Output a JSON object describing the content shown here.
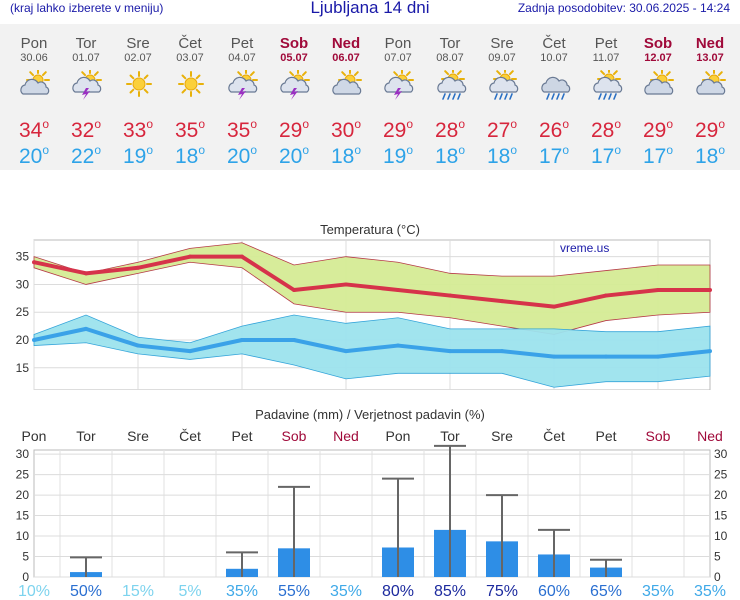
{
  "header": {
    "left_note": "(kraj lahko izberete v meniju)",
    "title": "Ljubljana 14 dni",
    "updated": "Zadnja posodobitev: 30.06.2025 - 14:24"
  },
  "days": [
    {
      "name": "Pon",
      "date": "30.06",
      "weekend": false,
      "icon": "partly-cloudy-sun-icon",
      "tmax": "34",
      "tmin": "20"
    },
    {
      "name": "Tor",
      "date": "01.07",
      "weekend": false,
      "icon": "sun-thunderstorm-icon",
      "tmax": "32",
      "tmin": "22"
    },
    {
      "name": "Sre",
      "date": "02.07",
      "weekend": false,
      "icon": "sunny-icon",
      "tmax": "33",
      "tmin": "19"
    },
    {
      "name": "Čet",
      "date": "03.07",
      "weekend": false,
      "icon": "sunny-icon",
      "tmax": "35",
      "tmin": "18"
    },
    {
      "name": "Pet",
      "date": "04.07",
      "weekend": false,
      "icon": "sun-thunderstorm-icon",
      "tmax": "35",
      "tmin": "20"
    },
    {
      "name": "Sob",
      "date": "05.07",
      "weekend": true,
      "icon": "sun-thunderstorm-icon",
      "tmax": "29",
      "tmin": "20"
    },
    {
      "name": "Ned",
      "date": "06.07",
      "weekend": true,
      "icon": "partly-cloudy-sun-icon",
      "tmax": "30",
      "tmin": "18"
    },
    {
      "name": "Pon",
      "date": "07.07",
      "weekend": false,
      "icon": "sun-thunderstorm-icon",
      "tmax": "29",
      "tmin": "19"
    },
    {
      "name": "Tor",
      "date": "08.07",
      "weekend": false,
      "icon": "sun-rain-icon",
      "tmax": "28",
      "tmin": "18"
    },
    {
      "name": "Sre",
      "date": "09.07",
      "weekend": false,
      "icon": "sun-rain-icon",
      "tmax": "27",
      "tmin": "18"
    },
    {
      "name": "Čet",
      "date": "10.07",
      "weekend": false,
      "icon": "cloud-rain-icon",
      "tmax": "26",
      "tmin": "17"
    },
    {
      "name": "Pet",
      "date": "11.07",
      "weekend": false,
      "icon": "sun-rain-icon",
      "tmax": "28",
      "tmin": "17"
    },
    {
      "name": "Sob",
      "date": "12.07",
      "weekend": true,
      "icon": "partly-cloudy-sun-icon",
      "tmax": "29",
      "tmin": "17"
    },
    {
      "name": "Ned",
      "date": "13.07",
      "weekend": true,
      "icon": "partly-cloudy-sun-icon",
      "tmax": "29",
      "tmin": "18"
    }
  ],
  "colors": {
    "max": "#d7263d",
    "min": "#2ea3e8",
    "weekend": "#a00a3a",
    "bar": "#2e8ee6",
    "maxband": "#d5ec95",
    "minband": "#9de3ee"
  },
  "chart_data": [
    {
      "type": "line",
      "title": "Temperatura (°C)",
      "watermark": "vreme.us",
      "ylim": [
        11,
        38
      ],
      "yticks": [
        15,
        20,
        25,
        30,
        35
      ],
      "x": [
        1,
        2,
        3,
        4,
        5,
        6,
        7,
        8,
        9,
        10,
        11,
        12,
        13,
        14
      ],
      "series": [
        {
          "name": "max",
          "values": [
            34,
            32,
            33,
            35,
            35,
            29,
            30,
            29,
            28,
            27,
            26,
            28,
            29,
            29
          ]
        },
        {
          "name": "min",
          "values": [
            20,
            22,
            19,
            18,
            20,
            20,
            18,
            19,
            18,
            18,
            17,
            17,
            17,
            18
          ]
        }
      ],
      "bands": [
        {
          "name": "max-range",
          "upper": [
            35,
            32,
            34,
            36.5,
            37.5,
            33.5,
            35,
            34,
            32,
            31.5,
            31.5,
            32.5,
            33.5,
            33.5
          ],
          "lower": [
            33,
            30,
            32,
            34,
            33,
            26.5,
            25,
            25,
            24,
            22.5,
            21,
            23.5,
            24.5,
            25
          ]
        },
        {
          "name": "min-range",
          "upper": [
            21,
            24.5,
            20.5,
            19.5,
            22.5,
            24.5,
            23,
            24,
            22,
            22,
            22,
            21.5,
            21.5,
            22.5
          ],
          "lower": [
            19,
            19.5,
            17.5,
            16.5,
            17.5,
            15.5,
            13,
            14,
            14,
            14,
            11.5,
            12.5,
            12.5,
            13.5
          ]
        }
      ]
    },
    {
      "type": "bar",
      "title": "Padavine (mm) / Verjetnost padavin (%)",
      "categories": [
        "Pon",
        "Tor",
        "Sre",
        "Čet",
        "Pet",
        "Sob",
        "Ned",
        "Pon",
        "Tor",
        "Sre",
        "Čet",
        "Pet",
        "Sob",
        "Ned"
      ],
      "values": [
        0,
        1.2,
        0,
        0,
        2,
        7,
        0,
        7.2,
        11.5,
        8.7,
        5.5,
        2.3,
        0,
        0
      ],
      "error_max": [
        0,
        4.8,
        0,
        0,
        6,
        22,
        0,
        24,
        32,
        20,
        11.5,
        4.2,
        0,
        0
      ],
      "probability": [
        "10%",
        "50%",
        "15%",
        "5%",
        "35%",
        "55%",
        "35%",
        "80%",
        "85%",
        "75%",
        "60%",
        "65%",
        "35%",
        "35%"
      ],
      "probability_values": [
        10,
        50,
        15,
        5,
        35,
        55,
        35,
        80,
        85,
        75,
        60,
        65,
        35,
        35
      ],
      "ylim": [
        0,
        31
      ],
      "yticks": [
        0,
        5,
        10,
        15,
        20,
        25,
        30
      ],
      "weekend": [
        false,
        false,
        false,
        false,
        false,
        true,
        true,
        false,
        false,
        false,
        false,
        false,
        true,
        true
      ]
    }
  ]
}
